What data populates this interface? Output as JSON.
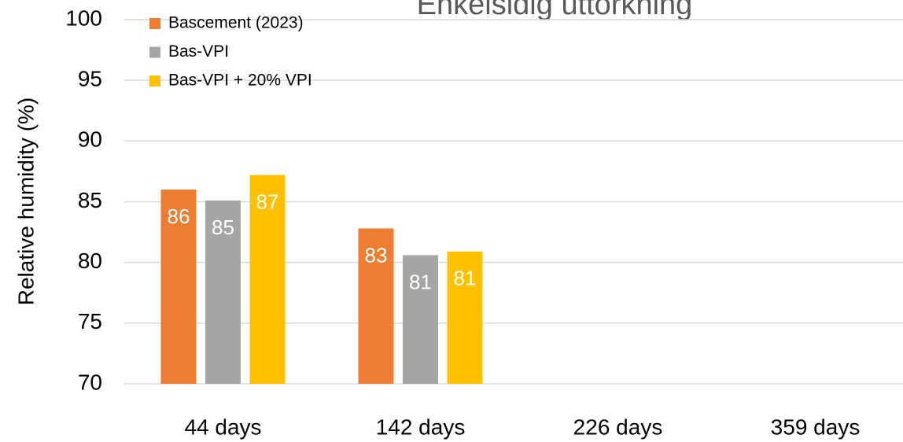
{
  "chart_data": {
    "type": "bar",
    "title": "Enkelsidig uttorkning",
    "y_label": "Relative humidity (%)",
    "categories": [
      "44 days",
      "142 days",
      "226 days",
      "359 days"
    ],
    "series": [
      {
        "name": "Bascement (2023)",
        "color": "#ED7D31",
        "values": [
          86,
          82.8,
          null,
          null
        ],
        "value_labels": [
          "86",
          "83",
          null,
          null
        ]
      },
      {
        "name": "Bas-VPI",
        "color": "#A5A5A5",
        "values": [
          85.1,
          80.6,
          null,
          null
        ],
        "value_labels": [
          "85",
          "81",
          null,
          null
        ]
      },
      {
        "name": "Bas-VPI + 20% VPI",
        "color": "#FFC000",
        "values": [
          87.2,
          80.9,
          null,
          null
        ],
        "value_labels": [
          "87",
          "81",
          null,
          null
        ]
      }
    ],
    "ylim": [
      70,
      100
    ],
    "yticks": [
      70,
      75,
      80,
      85,
      90,
      95,
      100
    ],
    "grid": true,
    "legend": "upper left"
  }
}
